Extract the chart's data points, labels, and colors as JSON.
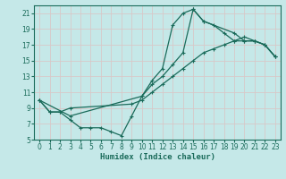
{
  "title": "",
  "xlabel": "Humidex (Indice chaleur)",
  "bg_color": "#c5e8e8",
  "grid_color": "#b0d0d0",
  "line_color": "#1a6b5a",
  "xlim": [
    -0.5,
    23.5
  ],
  "ylim": [
    5,
    22
  ],
  "yticks": [
    5,
    7,
    9,
    11,
    13,
    15,
    17,
    19,
    21
  ],
  "xticks": [
    0,
    1,
    2,
    3,
    4,
    5,
    6,
    7,
    8,
    9,
    10,
    11,
    12,
    13,
    14,
    15,
    16,
    17,
    18,
    19,
    20,
    21,
    22,
    23
  ],
  "line1_x": [
    0,
    1,
    2,
    3,
    4,
    5,
    6,
    7,
    8,
    9,
    10,
    11,
    12,
    13,
    14,
    15,
    16,
    17,
    18,
    19,
    20,
    21,
    22,
    23
  ],
  "line1_y": [
    10,
    8.5,
    8.5,
    7.5,
    6.5,
    6.5,
    6.5,
    6.0,
    5.5,
    8.0,
    10.5,
    12.5,
    14.0,
    19.5,
    21.0,
    21.5,
    20.0,
    19.5,
    18.5,
    17.5,
    17.5,
    17.5,
    17.0,
    15.5
  ],
  "line2_x": [
    0,
    1,
    2,
    3,
    9,
    10,
    11,
    12,
    13,
    14,
    15,
    16,
    17,
    18,
    19,
    20,
    21,
    22,
    23
  ],
  "line2_y": [
    10,
    8.5,
    8.5,
    9.0,
    9.5,
    10.0,
    11.0,
    12.0,
    13.0,
    14.0,
    15.0,
    16.0,
    16.5,
    17.0,
    17.5,
    18.0,
    17.5,
    17.0,
    15.5
  ],
  "line3_x": [
    0,
    3,
    10,
    11,
    12,
    13,
    14,
    15,
    16,
    19,
    20,
    21,
    22,
    23
  ],
  "line3_y": [
    10,
    8.0,
    10.5,
    12.0,
    13.0,
    14.5,
    16.0,
    21.5,
    20.0,
    18.5,
    17.5,
    17.5,
    17.0,
    15.5
  ]
}
